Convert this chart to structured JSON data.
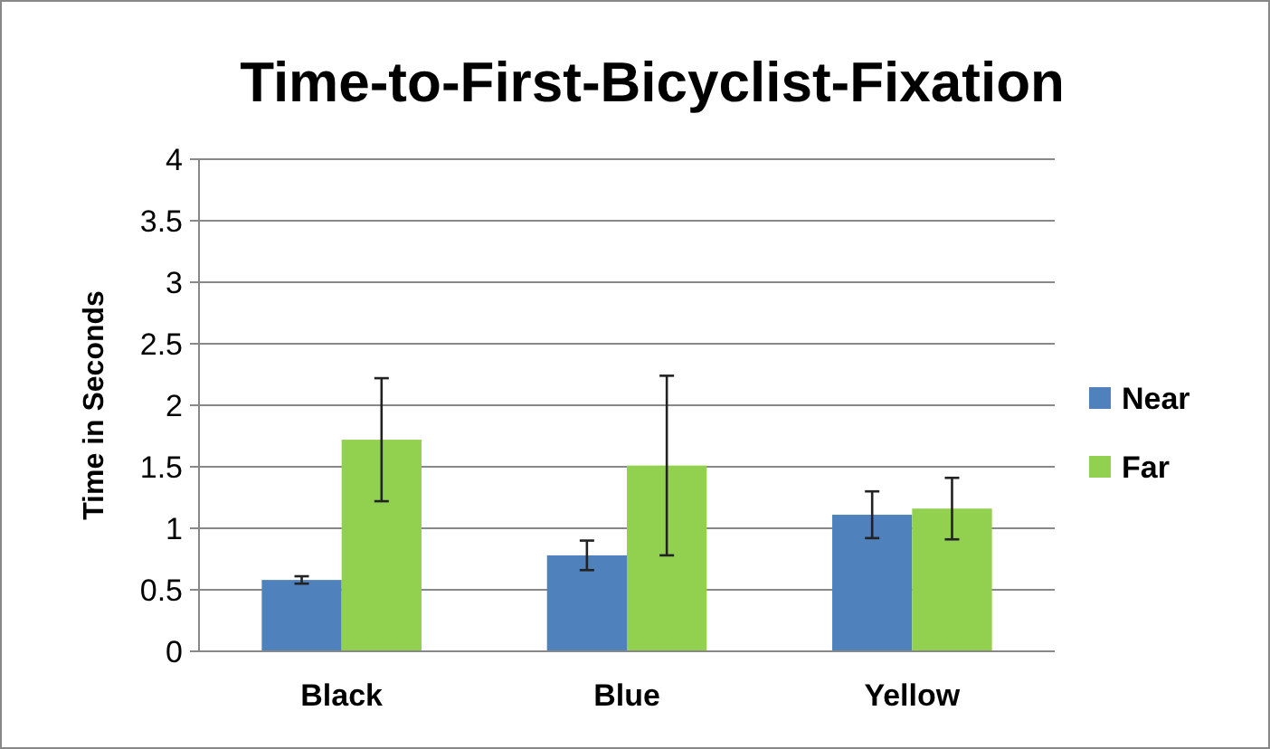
{
  "chart_data": {
    "type": "bar",
    "title": "Time-to-First-Bicyclist-Fixation",
    "ylabel": "Time in Seconds",
    "categories": [
      "Black",
      "Blue",
      "Yellow"
    ],
    "series": [
      {
        "name": "Near",
        "color": "#4f81bd",
        "values": [
          0.58,
          0.78,
          1.11
        ],
        "errors": [
          0.03,
          0.12,
          0.19
        ]
      },
      {
        "name": "Far",
        "color": "#92d050",
        "values": [
          1.72,
          1.51,
          1.16
        ],
        "errors": [
          0.5,
          0.73,
          0.25
        ]
      }
    ],
    "ylim": [
      0,
      4
    ],
    "yticks": [
      0,
      0.5,
      1,
      1.5,
      2,
      2.5,
      3,
      3.5,
      4
    ],
    "grid": "y",
    "legend": "right"
  }
}
